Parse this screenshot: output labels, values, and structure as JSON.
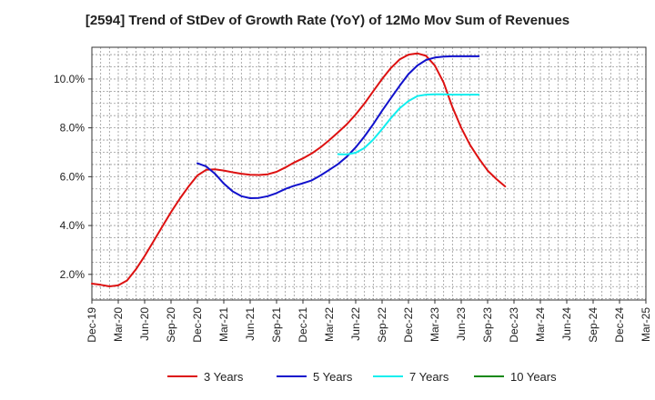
{
  "chart_data": {
    "type": "line",
    "title": "[2594]  Trend of StDev of Growth Rate (YoY) of 12Mo Mov Sum of Revenues",
    "xlabel": "",
    "ylabel": "",
    "ylim": [
      0.95,
      11.3
    ],
    "grid": true,
    "legend_position": "bottom",
    "x_ticks": [
      "Dec-19",
      "Mar-20",
      "Jun-20",
      "Sep-20",
      "Dec-20",
      "Mar-21",
      "Jun-21",
      "Sep-21",
      "Dec-21",
      "Mar-22",
      "Jun-22",
      "Sep-22",
      "Dec-22",
      "Mar-23",
      "Jun-23",
      "Sep-23",
      "Dec-23",
      "Mar-24",
      "Jun-24",
      "Sep-24",
      "Dec-24",
      "Mar-25"
    ],
    "y_ticks": [
      {
        "value": 2.0,
        "label": "2.0%"
      },
      {
        "value": 4.0,
        "label": "4.0%"
      },
      {
        "value": 6.0,
        "label": "6.0%"
      },
      {
        "value": 8.0,
        "label": "8.0%"
      },
      {
        "value": 10.0,
        "label": "10.0%"
      }
    ],
    "series": [
      {
        "name": "3 Years",
        "color": "#dd1111",
        "points": [
          [
            0,
            1.62
          ],
          [
            1,
            1.57
          ],
          [
            2,
            1.51
          ],
          [
            3,
            1.55
          ],
          [
            4,
            1.75
          ],
          [
            5,
            2.2
          ],
          [
            6,
            2.75
          ],
          [
            7,
            3.35
          ],
          [
            8,
            3.95
          ],
          [
            9,
            4.55
          ],
          [
            10,
            5.1
          ],
          [
            11,
            5.6
          ],
          [
            12,
            6.05
          ],
          [
            13,
            6.28
          ],
          [
            14,
            6.3
          ],
          [
            15,
            6.25
          ],
          [
            16,
            6.18
          ],
          [
            17,
            6.12
          ],
          [
            18,
            6.08
          ],
          [
            19,
            6.07
          ],
          [
            20,
            6.1
          ],
          [
            21,
            6.2
          ],
          [
            22,
            6.38
          ],
          [
            23,
            6.58
          ],
          [
            24,
            6.75
          ],
          [
            25,
            6.95
          ],
          [
            26,
            7.2
          ],
          [
            27,
            7.5
          ],
          [
            28,
            7.82
          ],
          [
            29,
            8.15
          ],
          [
            30,
            8.55
          ],
          [
            31,
            9.0
          ],
          [
            32,
            9.5
          ],
          [
            33,
            10.0
          ],
          [
            34,
            10.45
          ],
          [
            35,
            10.8
          ],
          [
            36,
            11.0
          ],
          [
            37,
            11.05
          ],
          [
            38,
            10.95
          ],
          [
            39,
            10.55
          ],
          [
            40,
            9.85
          ],
          [
            41,
            8.85
          ],
          [
            42,
            8.0
          ],
          [
            43,
            7.3
          ],
          [
            44,
            6.75
          ],
          [
            45,
            6.25
          ],
          [
            46,
            5.9
          ],
          [
            47,
            5.6
          ]
        ]
      },
      {
        "name": "5 Years",
        "color": "#1111cc",
        "points": [
          [
            12,
            6.55
          ],
          [
            13,
            6.42
          ],
          [
            14,
            6.12
          ],
          [
            15,
            5.72
          ],
          [
            16,
            5.4
          ],
          [
            17,
            5.2
          ],
          [
            18,
            5.12
          ],
          [
            19,
            5.13
          ],
          [
            20,
            5.2
          ],
          [
            21,
            5.33
          ],
          [
            22,
            5.5
          ],
          [
            23,
            5.63
          ],
          [
            24,
            5.73
          ],
          [
            25,
            5.85
          ],
          [
            26,
            6.05
          ],
          [
            27,
            6.28
          ],
          [
            28,
            6.52
          ],
          [
            29,
            6.82
          ],
          [
            30,
            7.2
          ],
          [
            31,
            7.65
          ],
          [
            32,
            8.15
          ],
          [
            33,
            8.7
          ],
          [
            34,
            9.22
          ],
          [
            35,
            9.72
          ],
          [
            36,
            10.2
          ],
          [
            37,
            10.55
          ],
          [
            38,
            10.78
          ],
          [
            39,
            10.88
          ],
          [
            40,
            10.92
          ],
          [
            41,
            10.93
          ],
          [
            42,
            10.93
          ],
          [
            43,
            10.93
          ],
          [
            44,
            10.93
          ]
        ]
      },
      {
        "name": "7 Years",
        "color": "#11eeee",
        "points": [
          [
            28,
            6.92
          ],
          [
            29,
            6.91
          ],
          [
            30,
            6.98
          ],
          [
            31,
            7.18
          ],
          [
            32,
            7.52
          ],
          [
            33,
            7.95
          ],
          [
            34,
            8.4
          ],
          [
            35,
            8.8
          ],
          [
            36,
            9.1
          ],
          [
            37,
            9.3
          ],
          [
            38,
            9.36
          ],
          [
            39,
            9.37
          ],
          [
            40,
            9.37
          ],
          [
            41,
            9.36
          ],
          [
            42,
            9.36
          ],
          [
            43,
            9.36
          ],
          [
            44,
            9.36
          ]
        ]
      },
      {
        "name": "10 Years",
        "color": "#118811",
        "points": []
      }
    ]
  }
}
